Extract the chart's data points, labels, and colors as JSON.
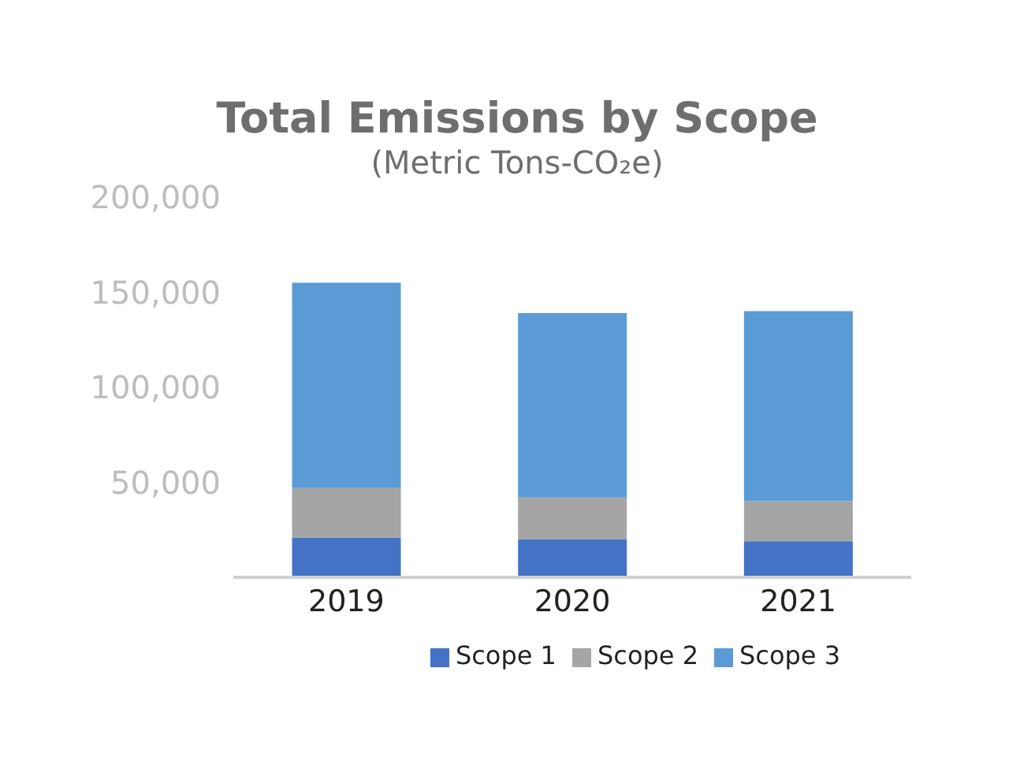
{
  "chart_data": {
    "type": "bar",
    "title": "Total Emissions by Scope",
    "subtitle": "(Metric Tons-CO₂e)",
    "categories": [
      "2019",
      "2020",
      "2021"
    ],
    "stacked": true,
    "series": [
      {
        "name": "Scope 1",
        "color": "#4472c4",
        "values": [
          21000,
          20000,
          19000
        ]
      },
      {
        "name": "Scope 2",
        "color": "#a5a5a5",
        "values": [
          26000,
          22000,
          21000
        ]
      },
      {
        "name": "Scope 3",
        "color": "#5b9bd5",
        "values": [
          108000,
          97000,
          100000
        ]
      }
    ],
    "ylim": [
      0,
      200000
    ],
    "yticks": [
      {
        "value": 0,
        "label": null
      },
      {
        "value": 50000,
        "label": "50,000"
      },
      {
        "value": 100000,
        "label": "100,000"
      },
      {
        "value": 150000,
        "label": "150,000"
      },
      {
        "value": 200000,
        "label": "200,000"
      }
    ],
    "grid": false,
    "legend": "bottom"
  }
}
